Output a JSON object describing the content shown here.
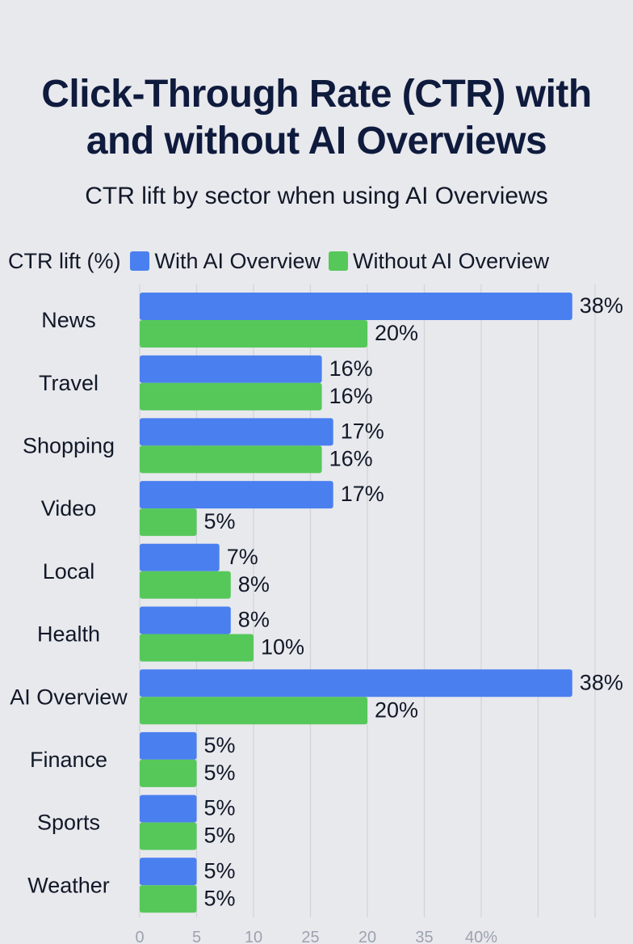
{
  "chart_data": {
    "type": "bar",
    "orientation": "horizontal",
    "title": "Click-Through Rate (CTR) with and without AI Overviews",
    "title_lines": [
      "Click-Through Rate (CTR) with",
      "and without AI Overviews"
    ],
    "subtitle": "CTR lift by sector when using AI Overviews",
    "xlabel": "CTR lift (%)",
    "categories": [
      "News",
      "Travel",
      "Shopping",
      "Video",
      "Local",
      "Health",
      "AI Overview",
      "Finance",
      "Sports",
      "Weather"
    ],
    "series": [
      {
        "name": "With AI Overview",
        "color": "#4a7ff0",
        "values": [
          38,
          16,
          17,
          17,
          7,
          8,
          38,
          5,
          5,
          5
        ],
        "labels": [
          "38%",
          "16%",
          "17%",
          "17%",
          "7%",
          "8%",
          "38%",
          "5%",
          "5%",
          "5%"
        ]
      },
      {
        "name": "Without AI Overview",
        "color": "#56c85a",
        "values": [
          20,
          16,
          16,
          5,
          8,
          10,
          20,
          5,
          5,
          5
        ],
        "labels": [
          "20%",
          "16%",
          "16%",
          "5%",
          "8%",
          "10%",
          "20%",
          "5%",
          "5%",
          "5%"
        ]
      }
    ],
    "x_ticks": [
      "0",
      "5",
      "10",
      "25",
      "20",
      "35",
      "40%"
    ],
    "xlim": [
      0,
      40
    ],
    "grid": true,
    "legend": "top"
  }
}
